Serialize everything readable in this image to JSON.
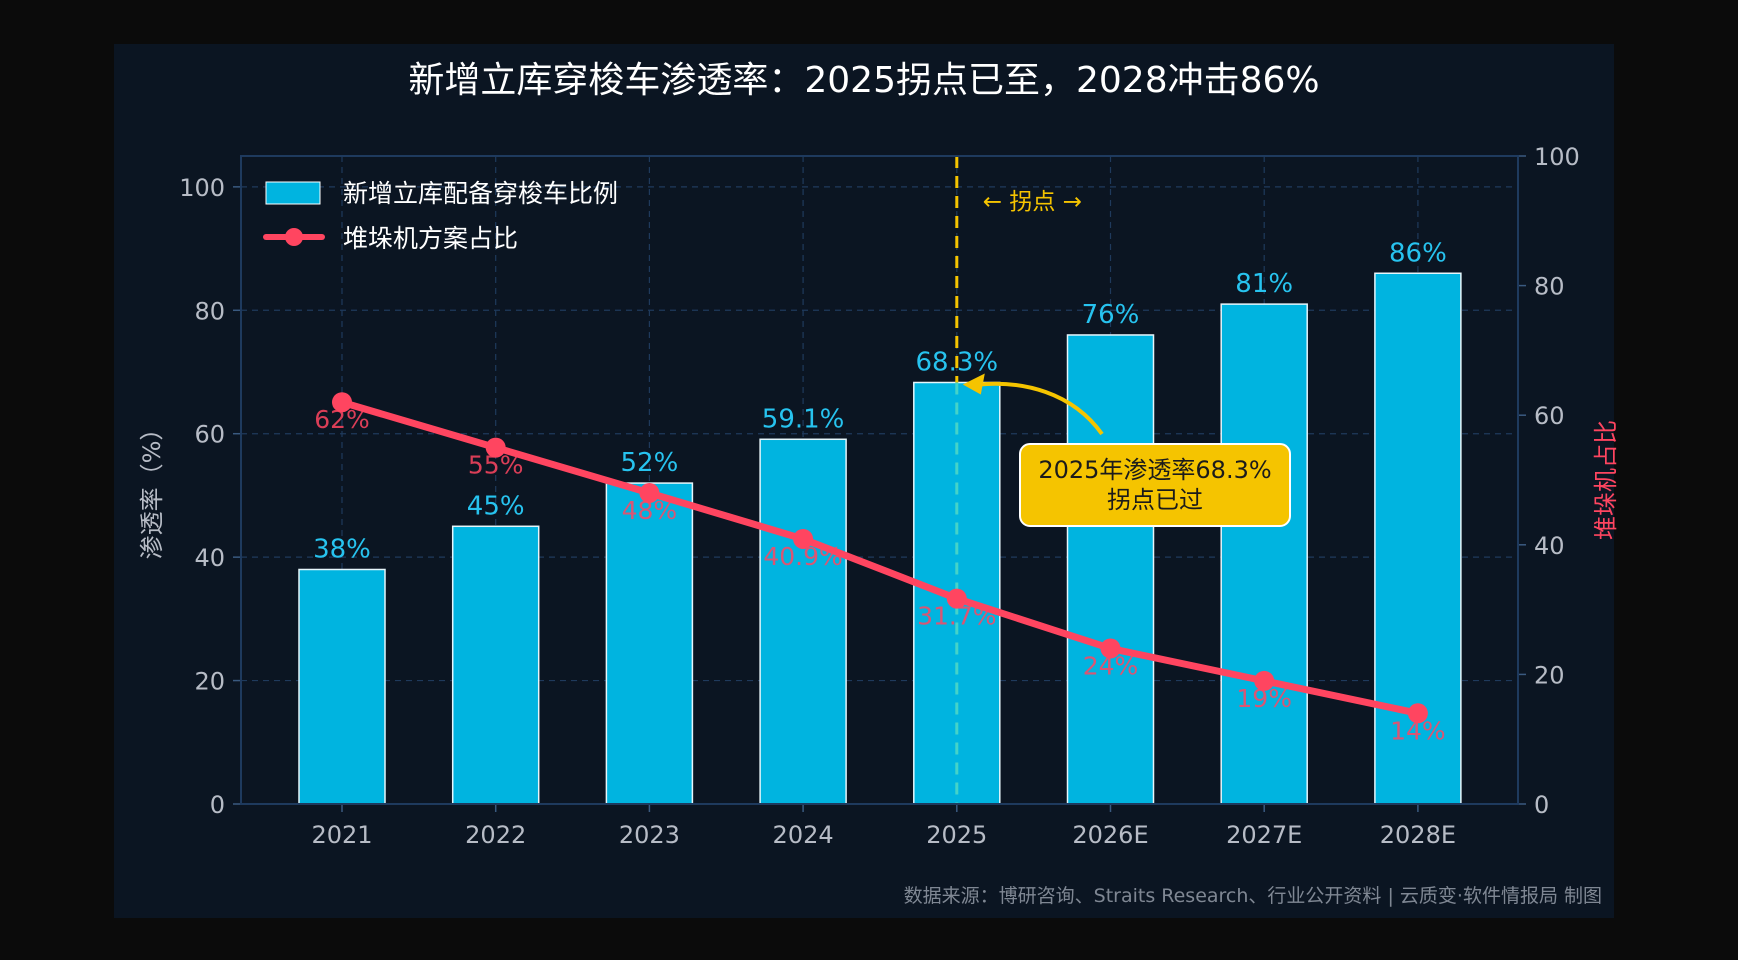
{
  "colors": {
    "page_bg": "#0b0b0b",
    "panel_bg": "#0b1522",
    "bar": "#00b4e0",
    "bar_label": "#27c3ef",
    "line": "#ff4560",
    "grid": "#1f3a5c",
    "text": "#b7bcc6",
    "highlight": "#f5c400"
  },
  "chart_data": {
    "type": "bar",
    "title": "新增立库穿梭车渗透率：2025拐点已至，2028冲击86%",
    "categories": [
      "2021",
      "2022",
      "2023",
      "2024",
      "2025",
      "2026E",
      "2027E",
      "2028E"
    ],
    "series": [
      {
        "name": "新增立库配备穿梭车比例",
        "type": "bar",
        "axis": "left",
        "values": [
          38,
          45,
          52,
          59.1,
          68.3,
          76,
          81,
          86
        ],
        "labels": [
          "38%",
          "45%",
          "52%",
          "59.1%",
          "68.3%",
          "76%",
          "81%",
          "86%"
        ]
      },
      {
        "name": "堆垛机方案占比",
        "type": "line",
        "axis": "right",
        "values": [
          62,
          55,
          48,
          40.9,
          31.7,
          24,
          19,
          14
        ],
        "labels": [
          "62%",
          "55%",
          "48%",
          "40.9%",
          "31.7%",
          "24%",
          "19%",
          "14%"
        ]
      }
    ],
    "ylabel": "渗透率（%）",
    "ylabel_right": "堆垛机占比",
    "ylim": [
      0,
      105
    ],
    "yticks": [
      "0",
      "20",
      "40",
      "60",
      "80",
      "100"
    ],
    "ylim_right": [
      0,
      100
    ],
    "yticks_right": [
      "0",
      "20",
      "40",
      "60",
      "80",
      "100"
    ],
    "grid": true,
    "legend_position": "top-left",
    "turning_point": {
      "category": "2025",
      "label": "← 拐点 →"
    },
    "annotation": {
      "lines": [
        "2025年渗透率68.3%",
        "拐点已过"
      ],
      "target_category": "2025"
    }
  },
  "footer": {
    "source": "数据来源：博研咨询、Straits Research、行业公开资料 | 云质变·软件情报局 制图"
  }
}
